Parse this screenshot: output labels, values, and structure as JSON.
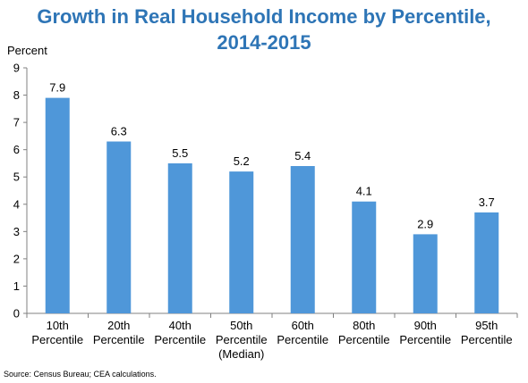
{
  "chart_data": {
    "type": "bar",
    "title": [
      "Growth in Real Household Income by Percentile,",
      "2014-2015"
    ],
    "ylabel": "Percent",
    "xlabel": "",
    "ylim": [
      0,
      9
    ],
    "yticks": [
      0,
      1,
      2,
      3,
      4,
      5,
      6,
      7,
      8,
      9
    ],
    "categories": [
      [
        "10th",
        "Percentile"
      ],
      [
        "20th",
        "Percentile"
      ],
      [
        "40th",
        "Percentile"
      ],
      [
        "50th",
        "Percentile",
        "(Median)"
      ],
      [
        "60th",
        "Percentile"
      ],
      [
        "80th",
        "Percentile"
      ],
      [
        "90th",
        "Percentile"
      ],
      [
        "95th",
        "Percentile"
      ]
    ],
    "values": [
      7.9,
      6.3,
      5.5,
      5.2,
      5.4,
      4.1,
      2.9,
      3.7
    ],
    "data_labels": [
      "7.9",
      "6.3",
      "5.5",
      "5.2",
      "5.4",
      "4.1",
      "2.9",
      "3.7"
    ],
    "bar_color": "#4f97d9",
    "title_color": "#2e75b6",
    "grid": false,
    "legend": "none"
  },
  "source": "Source: Census Bureau; CEA calculations."
}
